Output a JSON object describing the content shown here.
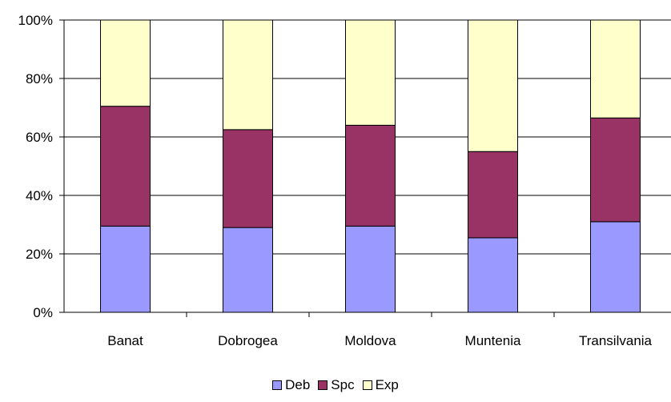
{
  "chart_data": {
    "type": "bar",
    "stacked": "percent",
    "categories": [
      "Banat",
      "Dobrogea",
      "Moldova",
      "Muntenia",
      "Transilvania"
    ],
    "series": [
      {
        "name": "Deb",
        "color": "#9999FF",
        "values": [
          29.5,
          29,
          29.5,
          25.5,
          31
        ]
      },
      {
        "name": "Spc",
        "color": "#993366",
        "values": [
          41,
          33.5,
          34.5,
          29.5,
          35.5
        ]
      },
      {
        "name": "Exp",
        "color": "#FFFFCC",
        "values": [
          29.5,
          37.5,
          36,
          45,
          33.5
        ]
      }
    ],
    "ylim": [
      0,
      100
    ],
    "yticks": [
      "0%",
      "20%",
      "40%",
      "60%",
      "80%",
      "100%"
    ],
    "grid": true,
    "legend": "bottom"
  }
}
